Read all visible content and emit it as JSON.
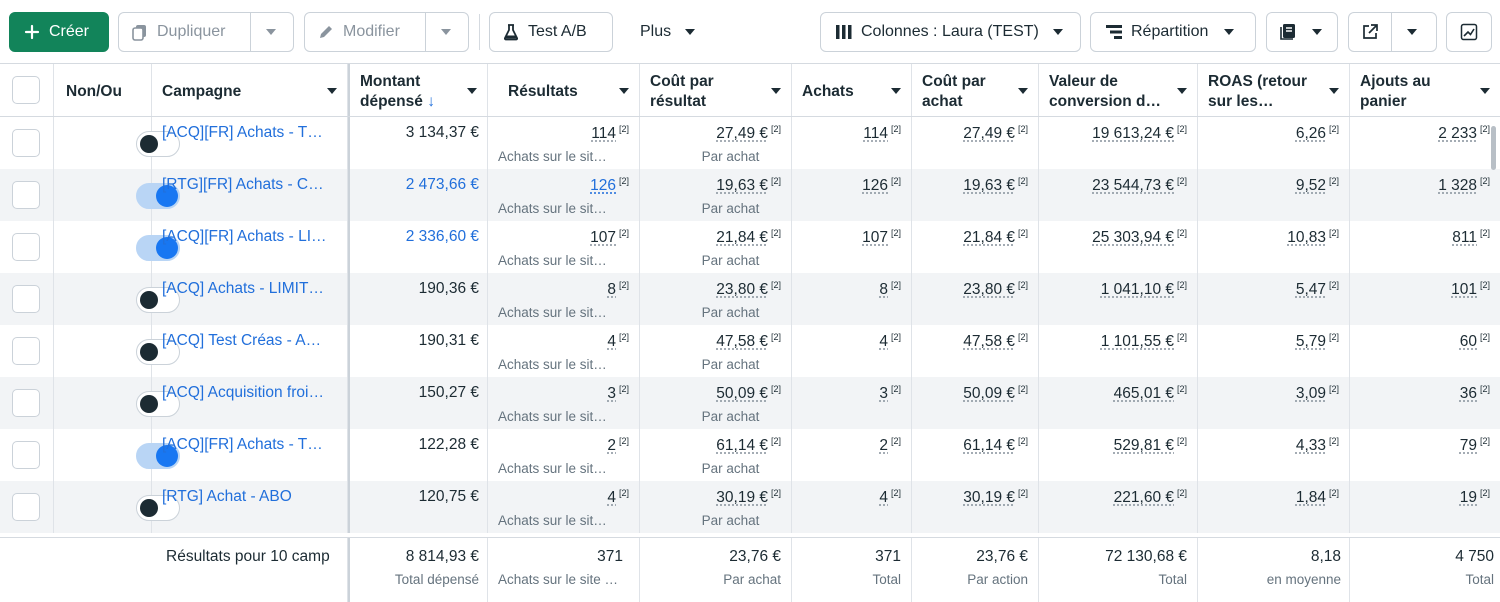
{
  "toolbar": {
    "create_label": "Créer",
    "duplicate_label": "Dupliquer",
    "edit_label": "Modifier",
    "abtest_label": "Test A/B",
    "more_label": "Plus",
    "columns_label": "Colonnes : Laura (TEST)",
    "breakdown_label": "Répartition"
  },
  "columns": {
    "toggle": "Non/Ou",
    "campaign": "Campagne",
    "spent": "Montant dépensé",
    "results": "Résultats",
    "cost_per_result": "Coût par résultat",
    "purchases": "Achats",
    "cost_per_purchase": "Coût par achat",
    "conv_value": "Valeur de conversion d…",
    "roas": "ROAS (retour sur les…",
    "add_to_cart": "Ajouts au panier"
  },
  "note_marker": "[2]",
  "rows": [
    {
      "on": false,
      "name": "[ACQ][FR] Achats - T…",
      "spent": "3 134,37 €",
      "spent_link": false,
      "results": "114",
      "results_link": false,
      "results_sub": "Achats sur le sit…",
      "cpr": "27,49 €",
      "cpr_sub": "Par achat",
      "purchases": "114",
      "cpp": "27,49 €",
      "conv": "19 613,24 €",
      "roas": "6,26",
      "atc": "2 233"
    },
    {
      "on": true,
      "name": "[RTG][FR] Achats - C…",
      "spent": "2 473,66 €",
      "spent_link": true,
      "results": "126",
      "results_link": true,
      "results_sub": "Achats sur le sit…",
      "cpr": "19,63 €",
      "cpr_sub": "Par achat",
      "purchases": "126",
      "cpp": "19,63 €",
      "conv": "23 544,73 €",
      "roas": "9,52",
      "atc": "1 328"
    },
    {
      "on": true,
      "name": "[ACQ][FR] Achats - LI…",
      "spent": "2 336,60 €",
      "spent_link": true,
      "results": "107",
      "results_link": false,
      "results_sub": "Achats sur le sit…",
      "cpr": "21,84 €",
      "cpr_sub": "Par achat",
      "purchases": "107",
      "cpp": "21,84 €",
      "conv": "25 303,94 €",
      "roas": "10,83",
      "atc": "811"
    },
    {
      "on": false,
      "name": "[ACQ] Achats - LIMIT…",
      "spent": "190,36 €",
      "spent_link": false,
      "results": "8",
      "results_link": false,
      "results_sub": "Achats sur le sit…",
      "cpr": "23,80 €",
      "cpr_sub": "Par achat",
      "purchases": "8",
      "cpp": "23,80 €",
      "conv": "1 041,10 €",
      "roas": "5,47",
      "atc": "101"
    },
    {
      "on": false,
      "name": "[ACQ] Test Créas - A…",
      "spent": "190,31 €",
      "spent_link": false,
      "results": "4",
      "results_link": false,
      "results_sub": "Achats sur le sit…",
      "cpr": "47,58 €",
      "cpr_sub": "Par achat",
      "purchases": "4",
      "cpp": "47,58 €",
      "conv": "1 101,55 €",
      "roas": "5,79",
      "atc": "60"
    },
    {
      "on": false,
      "name": "[ACQ] Acquisition froi…",
      "spent": "150,27 €",
      "spent_link": false,
      "results": "3",
      "results_link": false,
      "results_sub": "Achats sur le sit…",
      "cpr": "50,09 €",
      "cpr_sub": "Par achat",
      "purchases": "3",
      "cpp": "50,09 €",
      "conv": "465,01 €",
      "roas": "3,09",
      "atc": "36"
    },
    {
      "on": true,
      "name": "[ACQ][FR] Achats - T…",
      "spent": "122,28 €",
      "spent_link": false,
      "results": "2",
      "results_link": false,
      "results_sub": "Achats sur le sit…",
      "cpr": "61,14 €",
      "cpr_sub": "Par achat",
      "purchases": "2",
      "cpp": "61,14 €",
      "conv": "529,81 €",
      "roas": "4,33",
      "atc": "79"
    },
    {
      "on": false,
      "name": "[RTG] Achat - ABO",
      "spent": "120,75 €",
      "spent_link": false,
      "results": "4",
      "results_link": false,
      "results_sub": "Achats sur le sit…",
      "cpr": "30,19 €",
      "cpr_sub": "Par achat",
      "purchases": "4",
      "cpp": "30,19 €",
      "conv": "221,60 €",
      "roas": "1,84",
      "atc": "19"
    }
  ],
  "totals": {
    "label": "Résultats pour 10 camp",
    "spent": "8 814,93 €",
    "spent_sub": "Total dépensé",
    "results": "371",
    "results_sub": "Achats sur le site …",
    "cpr": "23,76 €",
    "cpr_sub": "Par achat",
    "purchases": "371",
    "purchases_sub": "Total",
    "cpp": "23,76 €",
    "cpp_sub": "Par action",
    "conv": "72 130,68 €",
    "conv_sub": "Total",
    "roas": "8,18",
    "roas_sub": "en moyenne",
    "atc": "4 750",
    "atc_sub": "Total"
  },
  "colors": {
    "accent": "#216fdb",
    "create_green": "#12845a",
    "toggle_on": "#1877f2"
  }
}
